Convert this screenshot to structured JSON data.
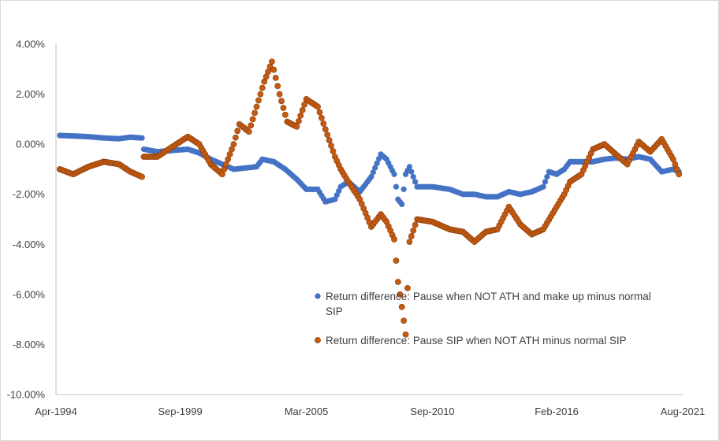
{
  "chart_data": {
    "type": "scatter",
    "title": "",
    "xlabel": "",
    "ylabel": "",
    "y_unit": "percent",
    "ylim": [
      -10,
      4
    ],
    "y_ticks": [
      4,
      2,
      0,
      -2,
      -4,
      -6,
      -8,
      -10
    ],
    "y_tick_labels": [
      "4.00%",
      "2.00%",
      "0.00%",
      "-2.00%",
      "-4.00%",
      "-6.00%",
      "-8.00%",
      "-10.00%"
    ],
    "xlim": [
      "1994-04",
      "2021-08"
    ],
    "x_tick_labels": [
      "Apr-1994",
      "Sep-1999",
      "Mar-2005",
      "Sep-2010",
      "Feb-2016",
      "Aug-2021"
    ],
    "x_ticks": [
      "1994-04",
      "1999-09",
      "2005-03",
      "2010-09",
      "2016-02",
      "2021-08"
    ],
    "grid": false,
    "legend_position": "lower-right",
    "series": [
      {
        "name": "Return difference: Pause when NOT ATH and make up minus normal SIP",
        "color": "#4472c4",
        "points": [
          [
            "1994-06",
            0.35
          ],
          [
            "1995-01",
            0.33
          ],
          [
            "1995-09",
            0.3
          ],
          [
            "1996-05",
            0.25
          ],
          [
            "1997-01",
            0.22
          ],
          [
            "1997-07",
            0.28
          ],
          [
            "1998-01",
            0.25
          ],
          [
            "1998-02",
            -0.2
          ],
          [
            "1998-09",
            -0.3
          ],
          [
            "1999-05",
            -0.25
          ],
          [
            "2000-01",
            -0.2
          ],
          [
            "2000-07",
            -0.35
          ],
          [
            "2001-01",
            -0.6
          ],
          [
            "2001-07",
            -0.8
          ],
          [
            "2002-01",
            -1.0
          ],
          [
            "2002-07",
            -0.95
          ],
          [
            "2003-01",
            -0.9
          ],
          [
            "2003-04",
            -0.6
          ],
          [
            "2003-10",
            -0.7
          ],
          [
            "2004-04",
            -1.0
          ],
          [
            "2004-10",
            -1.4
          ],
          [
            "2005-03",
            -1.8
          ],
          [
            "2005-09",
            -1.8
          ],
          [
            "2006-01",
            -2.3
          ],
          [
            "2006-06",
            -2.2
          ],
          [
            "2006-09",
            -1.7
          ],
          [
            "2007-01",
            -1.5
          ],
          [
            "2007-07",
            -1.9
          ],
          [
            "2008-01",
            -1.3
          ],
          [
            "2008-06",
            -0.4
          ],
          [
            "2008-09",
            -0.6
          ],
          [
            "2009-01",
            -1.2
          ],
          [
            "2009-03",
            -2.2
          ],
          [
            "2009-05",
            -2.4
          ],
          [
            "2009-07",
            -1.2
          ],
          [
            "2009-09",
            -0.9
          ],
          [
            "2010-01",
            -1.7
          ],
          [
            "2010-09",
            -1.7
          ],
          [
            "2011-06",
            -1.8
          ],
          [
            "2012-01",
            -2.0
          ],
          [
            "2012-07",
            -2.0
          ],
          [
            "2013-01",
            -2.1
          ],
          [
            "2013-07",
            -2.1
          ],
          [
            "2014-01",
            -1.9
          ],
          [
            "2014-07",
            -2.0
          ],
          [
            "2015-01",
            -1.9
          ],
          [
            "2015-07",
            -1.7
          ],
          [
            "2015-10",
            -1.1
          ],
          [
            "2016-02",
            -1.2
          ],
          [
            "2016-06",
            -1.0
          ],
          [
            "2016-09",
            -0.7
          ],
          [
            "2017-03",
            -0.7
          ],
          [
            "2017-09",
            -0.7
          ],
          [
            "2018-03",
            -0.6
          ],
          [
            "2018-09",
            -0.55
          ],
          [
            "2019-03",
            -0.6
          ],
          [
            "2019-09",
            -0.5
          ],
          [
            "2020-03",
            -0.6
          ],
          [
            "2020-09",
            -1.1
          ],
          [
            "2021-03",
            -1.0
          ],
          [
            "2021-06",
            -1.1
          ]
        ]
      },
      {
        "name": "Return difference: Pause SIP when NOT ATH minus normal SIP",
        "color": "#c55a11",
        "points": [
          [
            "1994-06",
            -1.0
          ],
          [
            "1995-01",
            -1.2
          ],
          [
            "1995-09",
            -0.9
          ],
          [
            "1996-05",
            -0.7
          ],
          [
            "1997-01",
            -0.8
          ],
          [
            "1997-07",
            -1.1
          ],
          [
            "1998-01",
            -1.3
          ],
          [
            "1998-02",
            -0.5
          ],
          [
            "1998-09",
            -0.5
          ],
          [
            "1999-03",
            -0.2
          ],
          [
            "1999-09",
            0.1
          ],
          [
            "2000-01",
            0.3
          ],
          [
            "2000-07",
            0.0
          ],
          [
            "2001-01",
            -0.8
          ],
          [
            "2001-07",
            -1.2
          ],
          [
            "2001-10",
            -0.6
          ],
          [
            "2002-01",
            0.0
          ],
          [
            "2002-04",
            0.8
          ],
          [
            "2002-09",
            0.5
          ],
          [
            "2003-01",
            1.5
          ],
          [
            "2003-05",
            2.5
          ],
          [
            "2003-09",
            3.3
          ],
          [
            "2004-01",
            2.0
          ],
          [
            "2004-05",
            0.9
          ],
          [
            "2004-10",
            0.7
          ],
          [
            "2005-03",
            1.8
          ],
          [
            "2005-09",
            1.5
          ],
          [
            "2006-01",
            0.6
          ],
          [
            "2006-06",
            -0.5
          ],
          [
            "2006-09",
            -1.0
          ],
          [
            "2007-01",
            -1.5
          ],
          [
            "2007-07",
            -2.2
          ],
          [
            "2008-01",
            -3.3
          ],
          [
            "2008-06",
            -2.8
          ],
          [
            "2008-09",
            -3.1
          ],
          [
            "2009-01",
            -3.8
          ],
          [
            "2009-03",
            -5.5
          ],
          [
            "2009-05",
            -6.5
          ],
          [
            "2009-07",
            -7.6
          ],
          [
            "2009-09",
            -3.9
          ],
          [
            "2010-01",
            -3.0
          ],
          [
            "2010-09",
            -3.1
          ],
          [
            "2011-06",
            -3.4
          ],
          [
            "2012-01",
            -3.5
          ],
          [
            "2012-07",
            -3.9
          ],
          [
            "2013-01",
            -3.5
          ],
          [
            "2013-07",
            -3.4
          ],
          [
            "2014-01",
            -2.5
          ],
          [
            "2014-07",
            -3.2
          ],
          [
            "2015-01",
            -3.6
          ],
          [
            "2015-07",
            -3.4
          ],
          [
            "2016-02",
            -2.5
          ],
          [
            "2016-06",
            -2.0
          ],
          [
            "2016-09",
            -1.5
          ],
          [
            "2017-03",
            -1.2
          ],
          [
            "2017-09",
            -0.2
          ],
          [
            "2018-03",
            0.0
          ],
          [
            "2018-09",
            -0.4
          ],
          [
            "2019-03",
            -0.8
          ],
          [
            "2019-09",
            0.1
          ],
          [
            "2020-03",
            -0.3
          ],
          [
            "2020-09",
            0.2
          ],
          [
            "2021-03",
            -0.6
          ],
          [
            "2021-06",
            -1.2
          ]
        ]
      }
    ]
  }
}
